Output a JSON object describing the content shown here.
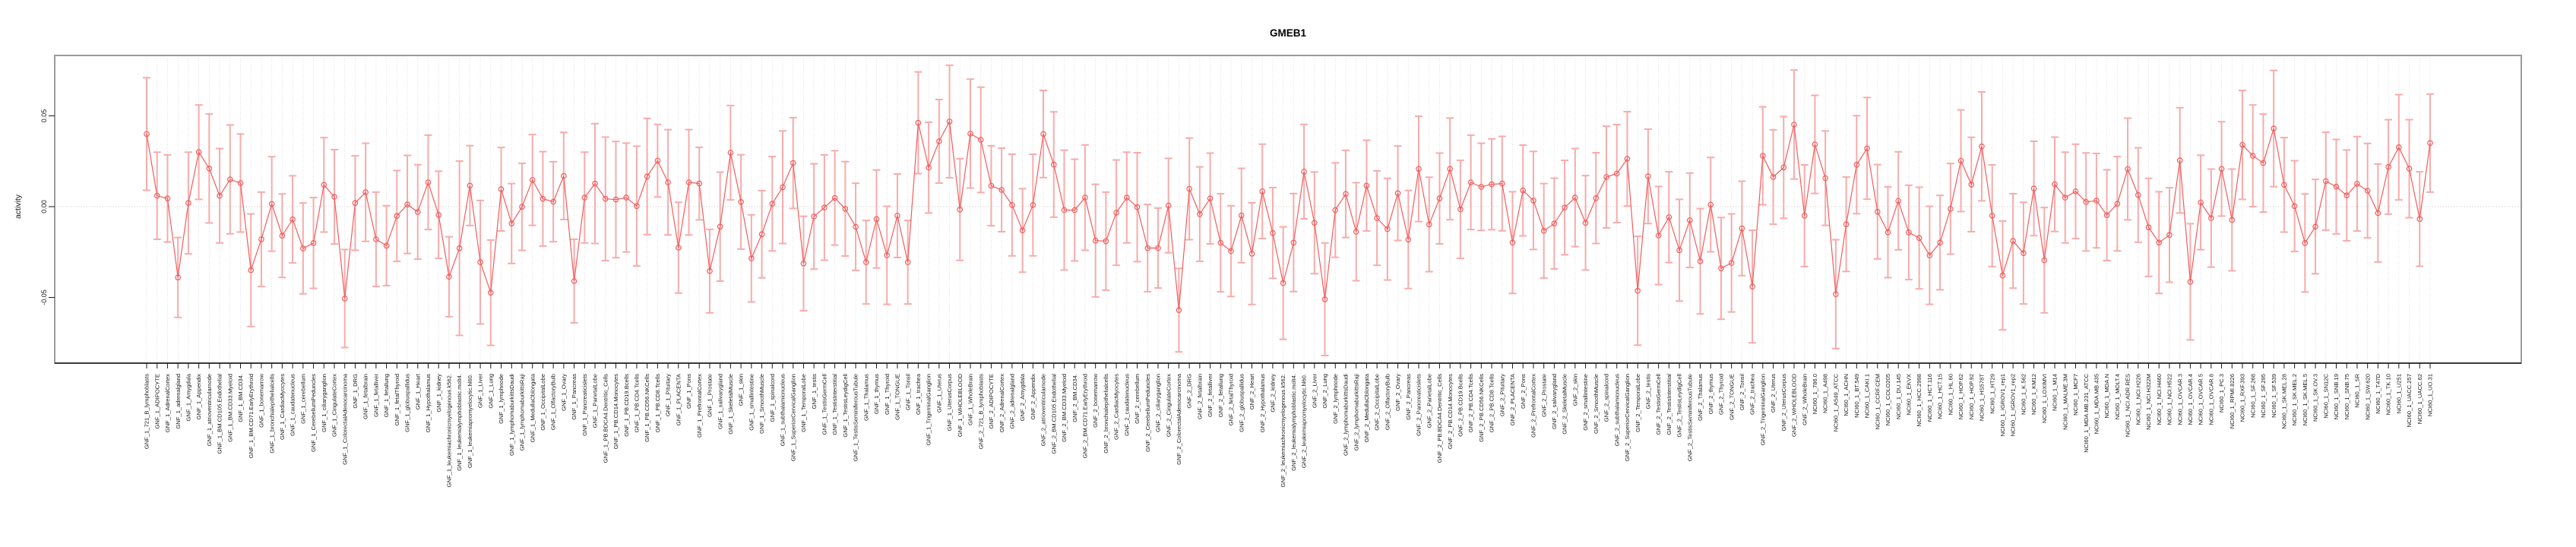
{
  "title": "GMEB1",
  "chart_data": {
    "type": "line",
    "subtype": "points-with-error-bars",
    "title": "GMEB1",
    "xlabel": "",
    "ylabel": "activity",
    "ylim": [
      -0.086,
      0.083
    ],
    "yticks": [
      0.05,
      0.0,
      -0.05
    ],
    "ytick_labels": [
      "0.05",
      "0.00",
      "-0.05"
    ],
    "grid": "vertical dotted gridline per category; dotted horizontal line at y=0",
    "legend_position": "none",
    "series_color": "#f25c5c",
    "errorbar_color": "#f7abab",
    "gridline_color": "#d9d9d9",
    "box_color": "#9b9b9b",
    "axis_color": "#1a1a1a",
    "categories": [
      "GNF_1_721_B_lymphoblasts",
      "GNF_1_ADIPOCYTE",
      "GNF_1_AdrenalCortex",
      "GNF_1_adrenalgland",
      "GNF_1_Amygdala",
      "GNF_1_Appendix",
      "GNF_1_atrioventricularnode",
      "GNF_1_BM.CD105.Endothelial",
      "GNF_1_BM.CD33.Myeloid",
      "GNF_1_BM.CD34.",
      "GNF_1_BM.CD71.EarlyErythroid",
      "GNF_1_bonemarrow",
      "GNF_1_bronchialepithelialcells",
      "GNF_1_CardiacMyocytes",
      "GNF_1_caudatenucleus",
      "GNF_1_cerebellum",
      "GNF_1_CerebellumPeduncles",
      "GNF_1_ciliaryganglion",
      "GNF_1_CingulateCortex",
      "GNF_1_ColorectalAdenocarcinoma",
      "GNF_1_DRG",
      "GNF_1_fetalbrain",
      "GNF_1_fetalliver",
      "GNF_1_fetallung",
      "GNF_1_fetalThyroid",
      "GNF_1_globuspallidus",
      "GNF_1_Heart",
      "GNF_1_Hypothalamus",
      "GNF_1_kidney",
      "GNF_1_leukemiachronicmyelogenous.k562.",
      "GNF_1_leukemialymphoblastic.molt4.",
      "GNF_1_leukemiapromyelocytic.hl60.",
      "GNF_1_Liver",
      "GNF_1_Lung",
      "GNF_1_lymphnode",
      "GNF_1_lymphomaburkittsDaudi",
      "GNF_1_lymphomaburkittsRaji",
      "GNF_1_MedullaOblongata",
      "GNF_1_OccipitalLobe",
      "GNF_1_OlfactoryBulb",
      "GNF_1_Ovary",
      "GNF_1_Pancreas",
      "GNF_1_Pancreaticislets",
      "GNF_1_ParietalLobe",
      "GNF_1_PB.BDCA4.Dentritic_Cells",
      "GNF_1_PB.CD14.Monocytes",
      "GNF_1_PB.CD19.Bcells",
      "GNF_1_PB.CD4.Tcells",
      "GNF_1_PB.CD56.NKCells",
      "GNF_1_PB.CD8.Tcells",
      "GNF_1_Pituitary",
      "GNF_1_PLACENTA",
      "GNF_1_Pons",
      "GNF_1_PrefrontalCortex",
      "GNF_1_Prostate",
      "GNF_1_salivarygland",
      "GNF_1_SkeletalMuscle",
      "GNF_1_skin",
      "GNF_1_smallintestine",
      "GNF_1_SmoothMuscle",
      "GNF_1_spinalcord",
      "GNF_1_subthalamicnucleus",
      "GNF_1_SuperiorCervicalGanglion",
      "GNF_1_TemporalLobe",
      "GNF_1_testis",
      "GNF_1_TestisGermCell",
      "GNF_1_TestisInterstitial",
      "GNF_1_TestisLeydigCell",
      "GNF_1_TestisSeminiferousTubule",
      "GNF_1_Thalamus",
      "GNF_1_thymus",
      "GNF_1_Thyroid",
      "GNF_1_TONGUE",
      "GNF_1_Tonsil",
      "GNF_1_trachea",
      "GNF_1_TrigeminalGanglion",
      "GNF_1_Uterus",
      "GNF_1_UterusCorpus",
      "GNF_1_WHOLEBLOOD",
      "GNF_1_WholeBrain",
      "GNF_2_721_B_lymphoblasts",
      "GNF_2_ADIPOCYTE",
      "GNF_2_AdrenalCortex",
      "GNF_2_adrenalgland",
      "GNF_2_Amygdala",
      "GNF_2_Appendix",
      "GNF_2_atrioventricularnode",
      "GNF_2_BM.CD105.Endothelial",
      "GNF_2_BM.CD33.Myeloid",
      "GNF_2_BM.CD34.",
      "GNF_2_BM.CD71.EarlyErythroid",
      "GNF_2_bonemarrow",
      "GNF_2_bronchialepithelialcells",
      "GNF_2_CardiacMyocytes",
      "GNF_2_caudatenucleus",
      "GNF_2_cerebellum",
      "GNF_2_CerebellumPeduncles",
      "GNF_2_ciliaryganglion",
      "GNF_2_CingulateCortex",
      "GNF_2_ColorectalAdenocarcinoma",
      "GNF_2_DRG",
      "GNF_2_fetalbrain",
      "GNF_2_fetalliver",
      "GNF_2_fetallung",
      "GNF_2_fetalThyroid",
      "GNF_2_globuspallidus",
      "GNF_2_Heart",
      "GNF_2_Hypothalamus",
      "GNF_2_kidney",
      "GNF_2_leukemiachronicmyelogenous.k562.",
      "GNF_2_leukemialymphoblastic.molt4.",
      "GNF_2_leukemiapromyelocytic.hl60.",
      "GNF_2_Liver",
      "GNF_2_Lung",
      "GNF_2_lymphnode",
      "GNF_2_lymphomaburkittsDaudi",
      "GNF_2_lymphomaburkittsRaji",
      "GNF_2_MedullaOblongata",
      "GNF_2_OccipitalLobe",
      "GNF_2_OlfactoryBulb",
      "GNF_2_Ovary",
      "GNF_2_Pancreas",
      "GNF_2_Pancreaticislets",
      "GNF_2_ParietalLobe",
      "GNF_2_PB.BDCA4.Dentritic_Cells",
      "GNF_2_PB.CD14.Monocytes",
      "GNF_2_PB.CD19.Bcells",
      "GNF_2_PB.CD4.Tcells",
      "GNF_2_PB.CD56.NKCells",
      "GNF_2_PB.CD8.Tcells",
      "GNF_2_Pituitary",
      "GNF_2_PLACENTA",
      "GNF_2_Pons",
      "GNF_2_PrefrontalCortex",
      "GNF_2_Prostate",
      "GNF_2_salivarygland",
      "GNF_2_SkeletalMuscle",
      "GNF_2_skin",
      "GNF_2_smallintestine",
      "GNF_2_SmoothMuscle",
      "GNF_2_spinalcord",
      "GNF_2_subthalamicnucleus",
      "GNF_2_SuperiorCervicalGanglion",
      "GNF_2_TemporalLobe",
      "GNF_2_testis",
      "GNF_2_TestisGermCell",
      "GNF_2_TestisInterstitial",
      "GNF_2_TestisLeydigCell",
      "GNF_2_TestisSeminiferousTubule",
      "GNF_2_Thalamus",
      "GNF_2_thymus",
      "GNF_2_Thyroid",
      "GNF_2_TONGUE",
      "GNF_2_Tonsil",
      "GNF_2_trachea",
      "GNF_2_TrigeminalGanglion",
      "GNF_2_Uterus",
      "GNF_2_UterusCorpus",
      "GNF_2_WHOLEBLOOD",
      "GNF_2_WholeBrain",
      "NCI60_1_786.0",
      "NCI60_1_A498",
      "NCI60_1_A549_ATCC",
      "NCI60_1_ACHN",
      "NCI60_1_BT.549",
      "NCI60_1_CAKI.1",
      "NCI60_1_CCRF.CEM",
      "NCI60_1_COLO205",
      "NCI60_1_DU.145",
      "NCI60_1_EKVX",
      "NCI60_1_HCC.2998",
      "NCI60_1_HCT.116",
      "NCI60_1_HCT.15",
      "NCI60_1_HL.60",
      "NCI60_1_HOP.62",
      "NCI60_1_HOP.92",
      "NCI60_1_HS578T",
      "NCI60_1_HT29",
      "NCI60_1_IGROV1_rep1",
      "NCI60_1_IGROV1_rep2",
      "NCI60_1_K.562",
      "NCI60_1_KM12",
      "NCI60_1_LOXIMVI",
      "NCI60_1_M14",
      "NCI60_1_MALME.3M",
      "NCI60_1_MCF7",
      "NCI60_1_MDA.MB.231_ATCC",
      "NCI60_1_MDA.MB.435",
      "NCI60_1_MDA.N",
      "NCI60_1_MOLT.4",
      "NCI60_1_NCI.ADR.RES",
      "NCI60_1_NCI.H226",
      "NCI60_1_NCI.H322M",
      "NCI60_1_NCI.H460",
      "NCI60_1_NCI.H522",
      "NCI60_1_OVCAR.3",
      "NCI60_1_OVCAR.4",
      "NCI60_1_OVCAR.5",
      "NCI60_1_OVCAR.8",
      "NCI60_1_PC.3",
      "NCI60_1_RPMI.8226",
      "NCI60_1_RXF.393",
      "NCI60_1_SF.268",
      "NCI60_1_SF.295",
      "NCI60_1_SF.539",
      "NCI60_1_SK.MEL.28",
      "NCI60_1_SK.MEL.2",
      "NCI60_1_SK.MEL.5",
      "NCI60_1_SK.OV.3",
      "NCI60_1_SN12C",
      "NCI60_1_SNB.19",
      "NCI60_1_SNB.75",
      "NCI60_1_SR",
      "NCI60_1_SW.620",
      "NCI60_1_T47D",
      "NCI60_1_TK.10",
      "NCI60_1_U251",
      "NCI60_1_UACC.257",
      "NCI60_1_UACC.62",
      "NCI60_1_UO.31"
    ],
    "values": [
      0.04,
      0.006,
      0.0045,
      -0.039,
      0.002,
      0.03,
      0.021,
      0.006,
      0.015,
      0.013,
      -0.035,
      -0.018,
      0.0015,
      -0.016,
      -0.007,
      -0.023,
      -0.02,
      0.012,
      0.0054,
      -0.0506,
      0.002,
      0.0079,
      -0.018,
      -0.0215,
      -0.0051,
      0.0012,
      -0.0029,
      0.0134,
      -0.0045,
      -0.0386,
      -0.0229,
      0.0116,
      -0.0306,
      -0.0474,
      0.0096,
      -0.0093,
      -0.0001,
      0.0147,
      0.0043,
      0.0027,
      0.0169,
      -0.041,
      0.005,
      0.0127,
      0.0043,
      0.0039,
      0.005,
      0.0003,
      0.0166,
      0.0253,
      0.0134,
      -0.0226,
      0.0134,
      0.0127,
      -0.0355,
      -0.011,
      0.0297,
      0.0026,
      -0.0285,
      -0.0152,
      0.0016,
      0.0107,
      0.024,
      -0.0313,
      -0.0054,
      -0.0005,
      0.0048,
      -0.0012,
      -0.0111,
      -0.0306,
      -0.0068,
      -0.0268,
      -0.005,
      -0.0306,
      0.0462,
      0.0215,
      0.036,
      0.0469,
      -0.0016,
      0.0402,
      0.0368,
      0.0115,
      0.0092,
      0.0009,
      -0.0131,
      0.0009,
      0.04,
      0.0232,
      -0.0019,
      -0.0019,
      0.005,
      -0.0187,
      -0.019,
      -0.0033,
      0.005,
      -0.0003,
      -0.0228,
      -0.0228,
      0.0006,
      -0.057,
      0.0098,
      -0.0041,
      0.0045,
      -0.0199,
      -0.0245,
      -0.0049,
      -0.0259,
      0.0084,
      -0.0145,
      -0.0421,
      -0.0198,
      0.0193,
      -0.0089,
      -0.051,
      -0.0019,
      0.007,
      -0.0138,
      0.0116,
      -0.0063,
      -0.0124,
      0.0074,
      -0.0181,
      0.0208,
      -0.0098,
      0.0045,
      0.0208,
      -0.0015,
      0.0134,
      0.0109,
      0.0123,
      0.0127,
      -0.0198,
      0.0089,
      0.0034,
      -0.0133,
      -0.0093,
      -0.0005,
      0.005,
      -0.0089,
      0.0047,
      0.0163,
      0.0182,
      0.0263,
      -0.0463,
      0.0167,
      -0.0159,
      -0.0058,
      -0.024,
      -0.0075,
      -0.0301,
      0.0011,
      -0.034,
      -0.031,
      -0.012,
      -0.044,
      0.028,
      0.0163,
      0.0216,
      0.0452,
      -0.005,
      0.0343,
      0.0157,
      -0.0482,
      -0.0097,
      0.0231,
      0.0321,
      -0.0028,
      -0.0141,
      0.0032,
      -0.0142,
      -0.0173,
      -0.0268,
      -0.0198,
      -0.0012,
      0.0253,
      0.0122,
      0.0332,
      -0.005,
      -0.0379,
      -0.0189,
      -0.0256,
      0.01,
      -0.0295,
      0.0123,
      0.005,
      0.0084,
      0.0026,
      0.0033,
      -0.0047,
      0.0016,
      0.0207,
      0.0064,
      -0.0114,
      -0.0198,
      -0.0156,
      0.0255,
      -0.0414,
      0.0023,
      -0.0063,
      0.0208,
      -0.0073,
      0.034,
      0.028,
      0.024,
      0.043,
      0.012,
      0.0003,
      -0.02,
      -0.011,
      0.014,
      0.011,
      0.0062,
      0.0126,
      0.0088,
      -0.0035,
      0.0219,
      0.0327,
      0.0209,
      -0.0068,
      0.035
    ],
    "errors": [
      0.031,
      0.024,
      0.024,
      0.022,
      0.028,
      0.026,
      0.03,
      0.026,
      0.03,
      0.027,
      0.031,
      0.026,
      0.026,
      0.023,
      0.024,
      0.025,
      0.025,
      0.026,
      0.026,
      0.027,
      0.026,
      0.027,
      0.026,
      0.022,
      0.025,
      0.027,
      0.026,
      0.026,
      0.024,
      0.022,
      0.048,
      0.022,
      0.034,
      0.029,
      0.023,
      0.022,
      0.024,
      0.025,
      0.026,
      0.022,
      0.024,
      0.023,
      0.025,
      0.033,
      0.034,
      0.032,
      0.03,
      0.033,
      0.032,
      0.02,
      0.029,
      0.025,
      0.029,
      0.02,
      0.023,
      0.03,
      0.026,
      0.026,
      0.024,
      0.024,
      0.026,
      0.031,
      0.025,
      0.026,
      0.029,
      0.029,
      0.026,
      0.026,
      0.024,
      0.023,
      0.027,
      0.027,
      0.023,
      0.023,
      0.028,
      0.025,
      0.023,
      0.031,
      0.028,
      0.03,
      0.029,
      0.022,
      0.023,
      0.028,
      0.023,
      0.028,
      0.024,
      0.029,
      0.033,
      0.028,
      0.029,
      0.031,
      0.027,
      0.029,
      0.025,
      0.03,
      0.024,
      0.022,
      0.026,
      0.023,
      0.028,
      0.026,
      0.025,
      0.027,
      0.025,
      0.026,
      0.028,
      0.026,
      0.025,
      0.031,
      0.027,
      0.026,
      0.028,
      0.031,
      0.026,
      0.024,
      0.027,
      0.025,
      0.026,
      0.028,
      0.026,
      0.027,
      0.029,
      0.026,
      0.025,
      0.028,
      0.027,
      0.026,
      0.024,
      0.025,
      0.026,
      0.028,
      0.025,
      0.027,
      0.026,
      0.025,
      0.026,
      0.027,
      0.026,
      0.025,
      0.028,
      0.027,
      0.026,
      0.03,
      0.026,
      0.027,
      0.025,
      0.028,
      0.026,
      0.029,
      0.026,
      0.028,
      0.027,
      0.026,
      0.031,
      0.027,
      0.026,
      0.028,
      0.03,
      0.028,
      0.027,
      0.026,
      0.03,
      0.026,
      0.027,
      0.028,
      0.026,
      0.025,
      0.027,
      0.026,
      0.028,
      0.027,
      0.026,
      0.025,
      0.028,
      0.026,
      0.03,
      0.028,
      0.03,
      0.026,
      0.028,
      0.026,
      0.029,
      0.026,
      0.025,
      0.026,
      0.027,
      0.026,
      0.025,
      0.026,
      0.028,
      0.026,
      0.027,
      0.028,
      0.026,
      0.029,
      0.032,
      0.026,
      0.027,
      0.026,
      0.028,
      0.03,
      0.028,
      0.027,
      0.032,
      0.026,
      0.025,
      0.027,
      0.026,
      0.027,
      0.026,
      0.025,
      0.026,
      0.026,
      0.027,
      0.026,
      0.029,
      0.027,
      0.026,
      0.027
    ]
  }
}
